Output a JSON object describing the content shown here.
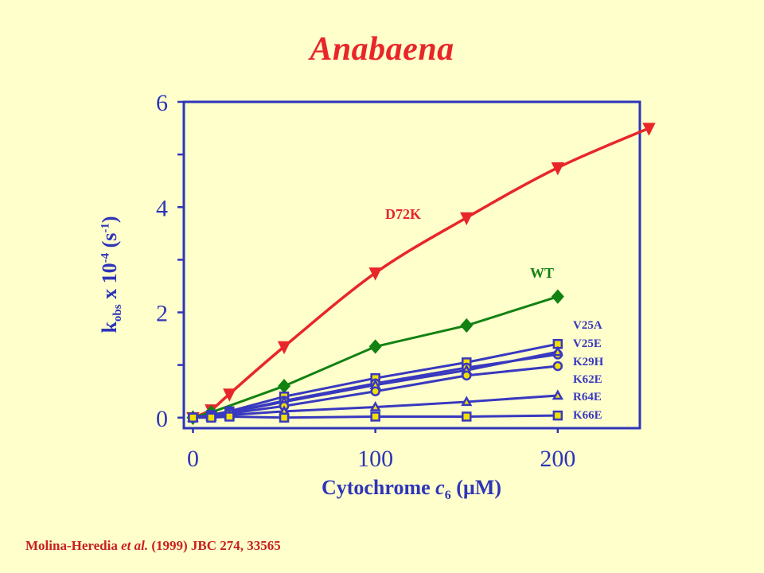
{
  "title": "Anabaena",
  "citation": {
    "authors": "Molina-Heredia",
    "etal": "et al.",
    "rest": "(1999) JBC 274, 33565"
  },
  "axes": {
    "ylabel_main": "k",
    "ylabel_sub": "obs",
    "ylabel_mid": " x 10",
    "ylabel_sup": "-4",
    "ylabel_unit_open": " (s",
    "ylabel_unit_sup": "-1",
    "ylabel_unit_close": ")",
    "xlabel_main": "Cytochrome ",
    "xlabel_c": "c",
    "xlabel_sub": "6",
    "xlabel_unit": " (µM)"
  },
  "colors": {
    "background": "#FFFFCC",
    "axis": "#2E35B8",
    "D72K": "#E8262A",
    "WT": "#128212",
    "mutants": "#3838C0",
    "marker_fill": "#F2E000"
  },
  "chart_data": {
    "type": "line",
    "title": "Anabaena",
    "xlabel": "Cytochrome c6 (µM)",
    "ylabel": "kobs x 10-4 (s-1)",
    "xlim": [
      -5,
      245
    ],
    "ylim": [
      -0.2,
      6.0
    ],
    "xticks": [
      0,
      100,
      200
    ],
    "yticks": [
      0,
      2,
      4,
      6
    ],
    "grid": false,
    "legend": "inline labels at right",
    "series": [
      {
        "name": "D72K",
        "marker": "triangle-down",
        "filled": true,
        "x": [
          0,
          10,
          20,
          50,
          100,
          150,
          200,
          250
        ],
        "y": [
          0,
          0.15,
          0.45,
          1.35,
          2.75,
          3.8,
          4.75,
          5.5
        ]
      },
      {
        "name": "WT",
        "marker": "diamond",
        "filled": true,
        "x": [
          0,
          10,
          50,
          100,
          150,
          200
        ],
        "y": [
          0,
          0.1,
          0.6,
          1.35,
          1.75,
          2.3
        ]
      },
      {
        "name": "V25A",
        "marker": "square",
        "filled": false,
        "x": [
          0,
          10,
          20,
          50,
          100,
          150,
          200
        ],
        "y": [
          0,
          0.05,
          0.12,
          0.4,
          0.75,
          1.05,
          1.4
        ]
      },
      {
        "name": "V25E",
        "marker": "circle",
        "filled": false,
        "x": [
          0,
          10,
          20,
          50,
          100,
          150,
          200
        ],
        "y": [
          0,
          0.04,
          0.1,
          0.32,
          0.65,
          0.95,
          1.2
        ]
      },
      {
        "name": "K29H",
        "marker": "triangle-up",
        "filled": false,
        "x": [
          0,
          10,
          20,
          50,
          100,
          150,
          200
        ],
        "y": [
          0,
          0.04,
          0.1,
          0.3,
          0.62,
          0.9,
          1.25
        ]
      },
      {
        "name": "K62E",
        "marker": "circle",
        "filled": false,
        "x": [
          0,
          10,
          20,
          50,
          100,
          150,
          200
        ],
        "y": [
          0,
          0.03,
          0.08,
          0.22,
          0.5,
          0.8,
          0.98
        ]
      },
      {
        "name": "R64E",
        "marker": "triangle-up",
        "filled": false,
        "x": [
          0,
          10,
          20,
          50,
          100,
          150,
          200
        ],
        "y": [
          0,
          0.02,
          0.05,
          0.12,
          0.2,
          0.3,
          0.42
        ]
      },
      {
        "name": "K66E",
        "marker": "square",
        "filled": false,
        "x": [
          0,
          10,
          20,
          50,
          100,
          150,
          200
        ],
        "y": [
          0,
          0.0,
          0.02,
          0.0,
          0.02,
          0.02,
          0.04
        ]
      }
    ]
  }
}
